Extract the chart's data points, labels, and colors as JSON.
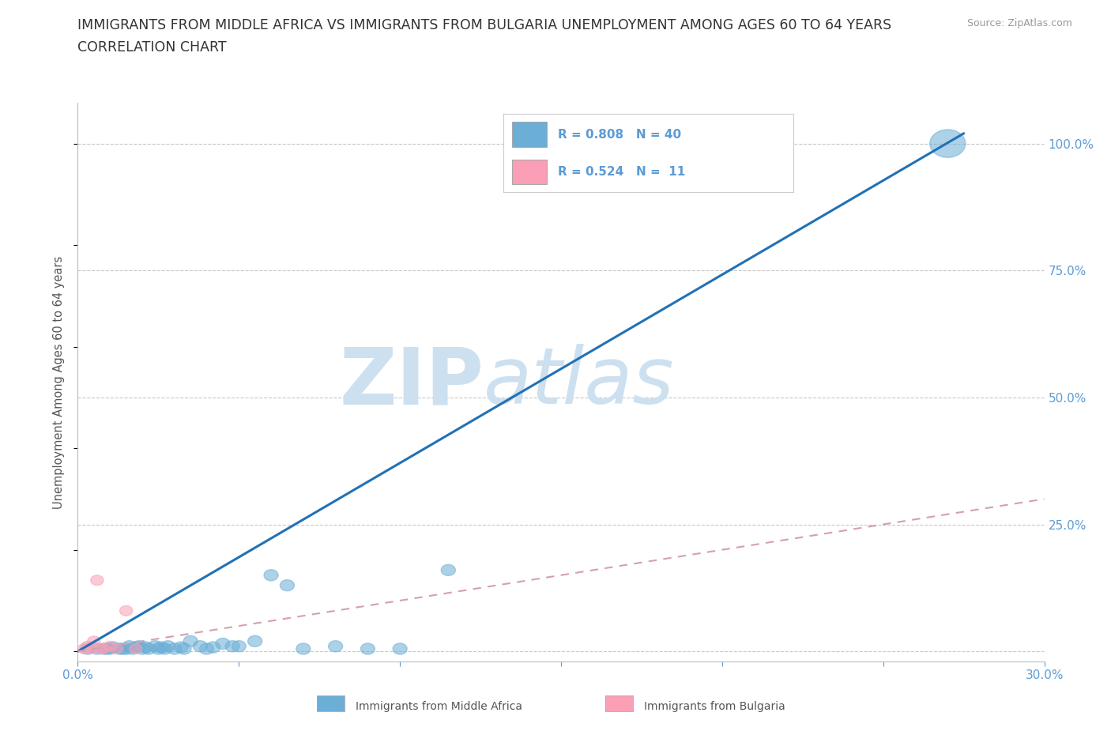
{
  "title_line1": "IMMIGRANTS FROM MIDDLE AFRICA VS IMMIGRANTS FROM BULGARIA UNEMPLOYMENT AMONG AGES 60 TO 64 YEARS",
  "title_line2": "CORRELATION CHART",
  "source_text": "Source: ZipAtlas.com",
  "ylabel": "Unemployment Among Ages 60 to 64 years",
  "xlim": [
    0.0,
    0.3
  ],
  "ylim": [
    -0.02,
    1.08
  ],
  "x_ticks": [
    0.0,
    0.05,
    0.1,
    0.15,
    0.2,
    0.25,
    0.3
  ],
  "x_tick_labels": [
    "0.0%",
    "",
    "",
    "",
    "",
    "",
    "30.0%"
  ],
  "y_ticks_right": [
    0.0,
    0.25,
    0.5,
    0.75,
    1.0
  ],
  "y_tick_labels_right": [
    "",
    "25.0%",
    "50.0%",
    "75.0%",
    "100.0%"
  ],
  "legend_R1": "R = 0.808",
  "legend_N1": "N = 40",
  "legend_R2": "R = 0.524",
  "legend_N2": " 11",
  "blue_color": "#6baed6",
  "pink_color": "#fa9fb5",
  "blue_line_color": "#2171b5",
  "pink_line_color": "#d4a0b0",
  "watermark_color": "#cce0f0",
  "grid_color": "#c8c8c8",
  "background_color": "#ffffff",
  "blue_scatter_x": [
    0.003,
    0.006,
    0.008,
    0.009,
    0.01,
    0.011,
    0.013,
    0.014,
    0.015,
    0.016,
    0.017,
    0.018,
    0.019,
    0.02,
    0.021,
    0.022,
    0.024,
    0.025,
    0.026,
    0.027,
    0.028,
    0.03,
    0.032,
    0.033,
    0.035,
    0.038,
    0.04,
    0.042,
    0.045,
    0.048,
    0.05,
    0.055,
    0.06,
    0.065,
    0.07,
    0.08,
    0.09,
    0.1,
    0.115,
    0.27
  ],
  "blue_scatter_y": [
    0.005,
    0.005,
    0.005,
    0.005,
    0.005,
    0.008,
    0.005,
    0.005,
    0.005,
    0.01,
    0.005,
    0.008,
    0.01,
    0.005,
    0.008,
    0.005,
    0.01,
    0.005,
    0.008,
    0.005,
    0.01,
    0.005,
    0.008,
    0.005,
    0.02,
    0.01,
    0.005,
    0.008,
    0.015,
    0.01,
    0.01,
    0.02,
    0.15,
    0.13,
    0.005,
    0.01,
    0.005,
    0.005,
    0.16,
    1.0
  ],
  "pink_scatter_x": [
    0.002,
    0.003,
    0.004,
    0.005,
    0.006,
    0.007,
    0.008,
    0.01,
    0.012,
    0.015,
    0.018
  ],
  "pink_scatter_y": [
    0.005,
    0.01,
    0.005,
    0.02,
    0.14,
    0.005,
    0.005,
    0.01,
    0.005,
    0.08,
    0.005
  ],
  "blue_trend_x": [
    0.0,
    0.275
  ],
  "blue_trend_y": [
    0.0,
    1.02
  ],
  "pink_trend_x": [
    0.0,
    0.3
  ],
  "pink_trend_y": [
    0.0,
    0.3
  ]
}
